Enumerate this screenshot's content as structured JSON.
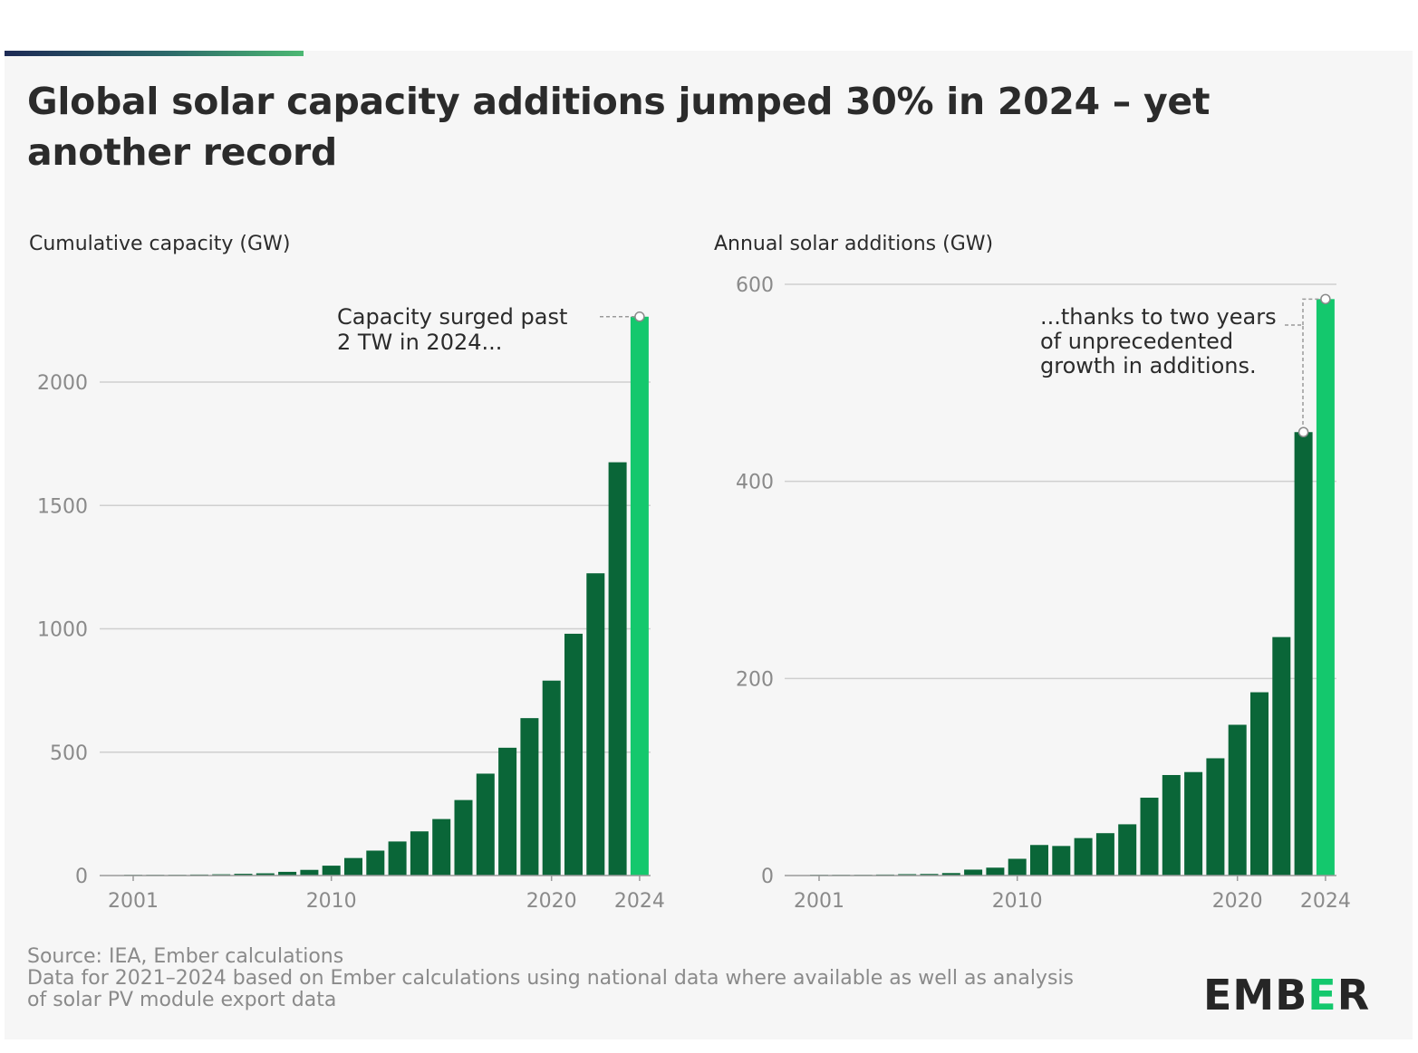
{
  "title": "Global solar capacity additions jumped 30% in 2024 – yet another record",
  "footer": {
    "source": "Source: IEA, Ember calculations",
    "note_line1": "Data for 2021–2024 based on Ember calculations using national data where available as well as analysis",
    "note_line2": "of solar PV module export data"
  },
  "logo": {
    "text_start": "EMB",
    "text_accent": "E",
    "text_end": "R",
    "accent_color": "#14c86d"
  },
  "colors": {
    "bar": "#0a6638",
    "highlight": "#14c86d",
    "grid": "#cfcfcf",
    "text": "#2b2b2b",
    "tick": "#8a8a8a"
  },
  "chart_data": [
    {
      "type": "bar",
      "title": "Cumulative capacity (GW)",
      "categories": [
        2001,
        2002,
        2003,
        2004,
        2005,
        2006,
        2007,
        2008,
        2009,
        2010,
        2011,
        2012,
        2013,
        2014,
        2015,
        2016,
        2017,
        2018,
        2019,
        2020,
        2021,
        2022,
        2023,
        2024
      ],
      "values": [
        1,
        2,
        3,
        4,
        5,
        7,
        9,
        15,
        23,
        40,
        71,
        101,
        138,
        179,
        229,
        306,
        413,
        518,
        638,
        790,
        980,
        1225,
        1675,
        2265
      ],
      "highlight_last": true,
      "yticks": [
        0,
        500,
        1000,
        1500,
        2000
      ],
      "ylim": [
        0,
        2450
      ],
      "xticks": [
        2001,
        2010,
        2020,
        2024
      ],
      "annotation": {
        "lines": [
          "Capacity surged past",
          "2 TW in 2024..."
        ],
        "target_index": 23
      }
    },
    {
      "type": "bar",
      "title": "Annual solar additions (GW)",
      "categories": [
        2001,
        2002,
        2003,
        2004,
        2005,
        2006,
        2007,
        2008,
        2009,
        2010,
        2011,
        2012,
        2013,
        2014,
        2015,
        2016,
        2017,
        2018,
        2019,
        2020,
        2021,
        2022,
        2023,
        2024
      ],
      "values": [
        0.3,
        0.5,
        0.6,
        1,
        1.4,
        1.6,
        2.5,
        6,
        8,
        17,
        31,
        30,
        38,
        43,
        52,
        79,
        102,
        105,
        119,
        153,
        186,
        242,
        450,
        585
      ],
      "highlight_last": true,
      "yticks": [
        0,
        200,
        400,
        600
      ],
      "ylim": [
        0,
        600
      ],
      "xticks": [
        2001,
        2010,
        2020,
        2024
      ],
      "annotation": {
        "lines": [
          "...thanks to two years",
          "of unprecedented",
          "growth in additions."
        ],
        "target_indices": [
          22,
          23
        ]
      }
    }
  ]
}
